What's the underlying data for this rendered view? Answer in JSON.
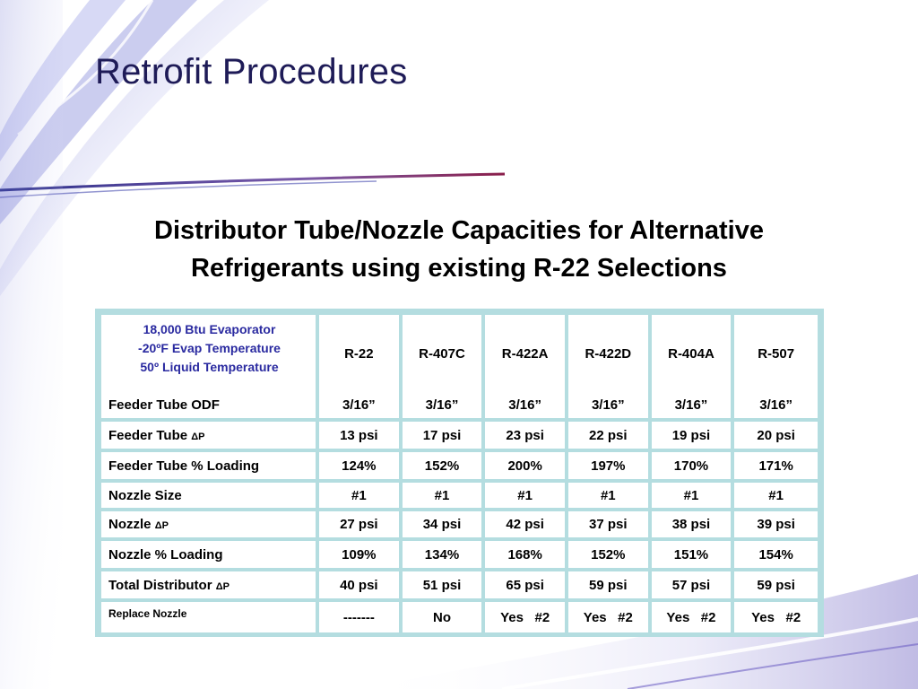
{
  "slide": {
    "title": "Retrofit Procedures",
    "subtitle_line1": "Distributor Tube/Nozzle Capacities for Alternative",
    "subtitle_line2": "Refrigerants using existing R-22 Selections"
  },
  "table": {
    "corner": [
      "18,000 Btu Evaporator",
      "-20ºF Evap Temperature",
      "50º Liquid Temperature"
    ],
    "columns": [
      "R-22",
      "R-407C",
      "R-422A",
      "R-422D",
      "R-404A",
      "R-507"
    ],
    "rows": [
      {
        "label": "Feeder Tube ODF",
        "delta": "",
        "values": [
          "3/16”",
          "3/16”",
          "3/16”",
          "3/16”",
          "3/16”",
          "3/16”"
        ],
        "highlight": [
          false,
          false,
          false,
          false,
          false,
          false
        ]
      },
      {
        "label": "Feeder Tube ",
        "delta": "ΔP",
        "values": [
          "13 psi",
          "17 psi",
          "23 psi",
          "22 psi",
          "19 psi",
          "20 psi"
        ],
        "highlight": [
          false,
          false,
          false,
          false,
          false,
          false
        ]
      },
      {
        "label": "Feeder Tube % Loading",
        "delta": "",
        "values": [
          "124%",
          "152%",
          "200%",
          "197%",
          "170%",
          "171%"
        ],
        "highlight": [
          false,
          true,
          true,
          true,
          true,
          true
        ]
      },
      {
        "label": "Nozzle Size",
        "delta": "",
        "values": [
          "#1",
          "#1",
          "#1",
          "#1",
          "#1",
          "#1"
        ],
        "highlight": [
          false,
          false,
          false,
          false,
          false,
          false
        ]
      },
      {
        "label": "Nozzle ",
        "delta": "ΔP",
        "values": [
          "27 psi",
          "34 psi",
          "42 psi",
          "37 psi",
          "38 psi",
          "39 psi"
        ],
        "highlight": [
          false,
          false,
          false,
          false,
          false,
          false
        ]
      },
      {
        "label": "Nozzle % Loading",
        "delta": "",
        "values": [
          "109%",
          "134%",
          "168%",
          "152%",
          "151%",
          "154%"
        ],
        "highlight": [
          false,
          false,
          true,
          true,
          true,
          true
        ]
      },
      {
        "label": "Total Distributor ",
        "delta": "ΔP",
        "values": [
          "40 psi",
          "51 psi",
          "65 psi",
          "59 psi",
          "57 psi",
          "59 psi"
        ],
        "highlight": [
          false,
          false,
          true,
          true,
          true,
          true
        ]
      },
      {
        "label": "Replace Nozzle",
        "delta": "",
        "values": [
          "-------",
          "No",
          "Yes   #2",
          "Yes   #2",
          "Yes   #2",
          "Yes   #2"
        ],
        "highlight": [
          false,
          false,
          true,
          true,
          true,
          true
        ]
      }
    ]
  },
  "colors": {
    "title": "#1e1b57",
    "corner_text": "#2a2aa0",
    "highlight": "#e8141b",
    "table_border": "#b4dde0"
  }
}
